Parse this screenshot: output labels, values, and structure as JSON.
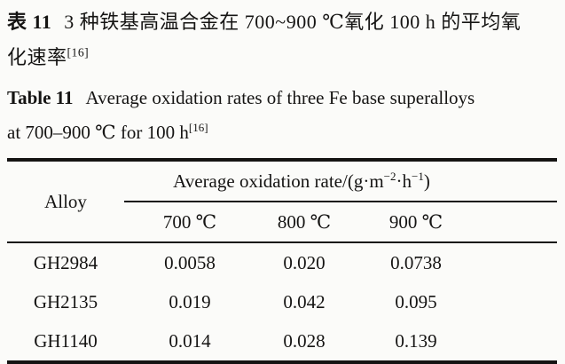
{
  "caption_cn": {
    "label": "表 11",
    "line1_rest": "3 种铁基高温合金在 700~900 ℃氧化 100 h 的平均氧",
    "line2": "化速率",
    "ref_sup": "[16]"
  },
  "caption_en": {
    "label": "Table 11",
    "line1_rest": "Average oxidation rates of three Fe base superalloys",
    "line2": "at 700–900 ℃ for 100 h",
    "ref_sup": "[16]"
  },
  "table": {
    "alloy_header": "Alloy",
    "span_header": {
      "prefix": "Average oxidation rate/(g·m",
      "sup1": "−2",
      "mid": "·h",
      "sup2": "−1",
      "suffix": ")"
    },
    "temp_headers": [
      "700 ℃",
      "800 ℃",
      "900 ℃"
    ],
    "rows": [
      {
        "alloy": "GH2984",
        "values": [
          "0.0058",
          "0.020",
          "0.0738"
        ]
      },
      {
        "alloy": "GH2135",
        "values": [
          "0.019",
          "0.042",
          "0.095"
        ]
      },
      {
        "alloy": "GH1140",
        "values": [
          "0.014",
          "0.028",
          "0.139"
        ]
      }
    ]
  },
  "colors": {
    "text": "#151413",
    "background": "#fbfbf9",
    "rule": "#151413"
  }
}
